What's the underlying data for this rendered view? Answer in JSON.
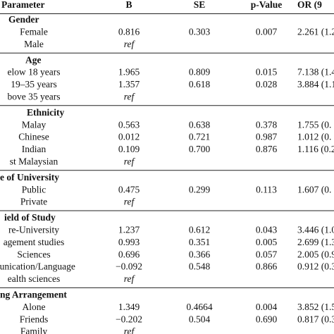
{
  "header": {
    "parameter": "Parameter",
    "b": "B",
    "se": "SE",
    "p_value": "p-Value",
    "or": "OR (9"
  },
  "sections": [
    {
      "title": "Gender",
      "rows": [
        {
          "label": "Female",
          "b": "0.816",
          "se": "0.303",
          "p": "0.007",
          "or": "2.261 (1.2"
        },
        {
          "label": "Male",
          "b": "ref"
        }
      ]
    },
    {
      "title": "Age",
      "rows": [
        {
          "label": "elow 18 years",
          "b": "1.965",
          "se": "0.809",
          "p": "0.015",
          "or": "7.138 (1.4("
        },
        {
          "label": "19–35 years",
          "b": "1.357",
          "se": "0.618",
          "p": "0.028",
          "or": "3.884 (1.1"
        },
        {
          "label": "bove 35 years",
          "b": "ref"
        }
      ]
    },
    {
      "title": "Ethnicity",
      "rows": [
        {
          "label": "Malay",
          "b": "0.563",
          "se": "0.638",
          "p": "0.378",
          "or": "1.755 (0."
        },
        {
          "label": "Chinese",
          "b": "0.012",
          "se": "0.721",
          "p": "0.987",
          "or": "1.012 (0."
        },
        {
          "label": "Indian",
          "b": "0.109",
          "se": "0.700",
          "p": "0.876",
          "or": "1.116 (0.2"
        },
        {
          "label": "st Malaysian",
          "b": "ref"
        }
      ]
    },
    {
      "title": "e of University",
      "rows": [
        {
          "label": "Public",
          "b": "0.475",
          "se": "0.299",
          "p": "0.113",
          "or": "1.607 (0."
        },
        {
          "label": "Private",
          "b": "ref"
        }
      ]
    },
    {
      "title": "ield of Study",
      "rows": [
        {
          "label": "re-University",
          "b": "1.237",
          "se": "0.612",
          "p": "0.043",
          "or": "3.446 (1.0"
        },
        {
          "label": "agement studies",
          "b": "0.993",
          "se": "0.351",
          "p": "0.005",
          "or": "2.699 (1.3"
        },
        {
          "label": "Sciences",
          "b": "0.696",
          "se": "0.366",
          "p": "0.057",
          "or": "2.005 (0.9"
        },
        {
          "label": "munication/Language",
          "b": "−0.092",
          "se": "0.548",
          "p": "0.866",
          "or": "0.912 (0.3"
        },
        {
          "label": "ealth sciences",
          "b": "ref"
        }
      ]
    },
    {
      "title": "ng Arrangement",
      "rows": [
        {
          "label": "Alone",
          "b": "1.349",
          "se": "0.4664",
          "p": "0.004",
          "or": "3.852 (1.5"
        },
        {
          "label": "Friends",
          "b": "−0.202",
          "se": "0.504",
          "p": "0.690",
          "or": "0.817 (0.3"
        },
        {
          "label": "Family",
          "b": "ref"
        }
      ]
    }
  ]
}
